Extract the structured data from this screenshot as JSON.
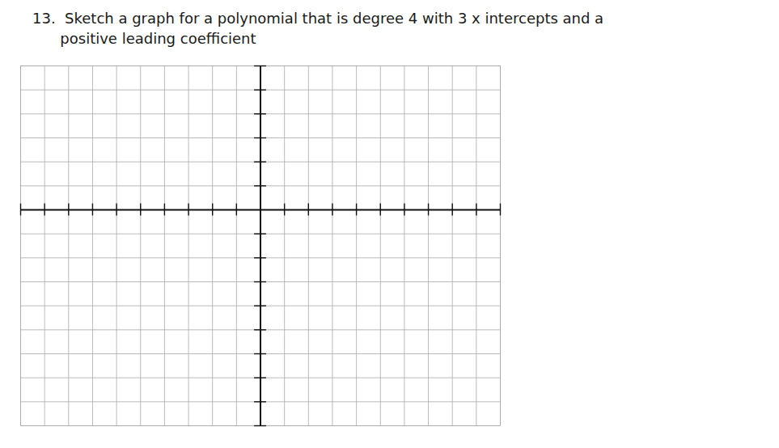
{
  "chart_data": {
    "type": "coordinate_grid",
    "title": "13.  Sketch a graph for a polynomial that is degree 4 with 3 x intercepts and a\n      positive leading coefficient",
    "xlim": [
      -10,
      10
    ],
    "ylim": [
      -9,
      6
    ],
    "xticks": [
      -10,
      -9,
      -8,
      -7,
      -6,
      -5,
      -4,
      -3,
      -2,
      -1,
      0,
      1,
      2,
      3,
      4,
      5,
      6,
      7,
      8,
      9,
      10
    ],
    "yticks": [
      -9,
      -8,
      -7,
      -6,
      -5,
      -4,
      -3,
      -2,
      -1,
      0,
      1,
      2,
      3,
      4,
      5,
      6
    ],
    "grid": true,
    "tick_labels": false,
    "color": "#111111"
  }
}
